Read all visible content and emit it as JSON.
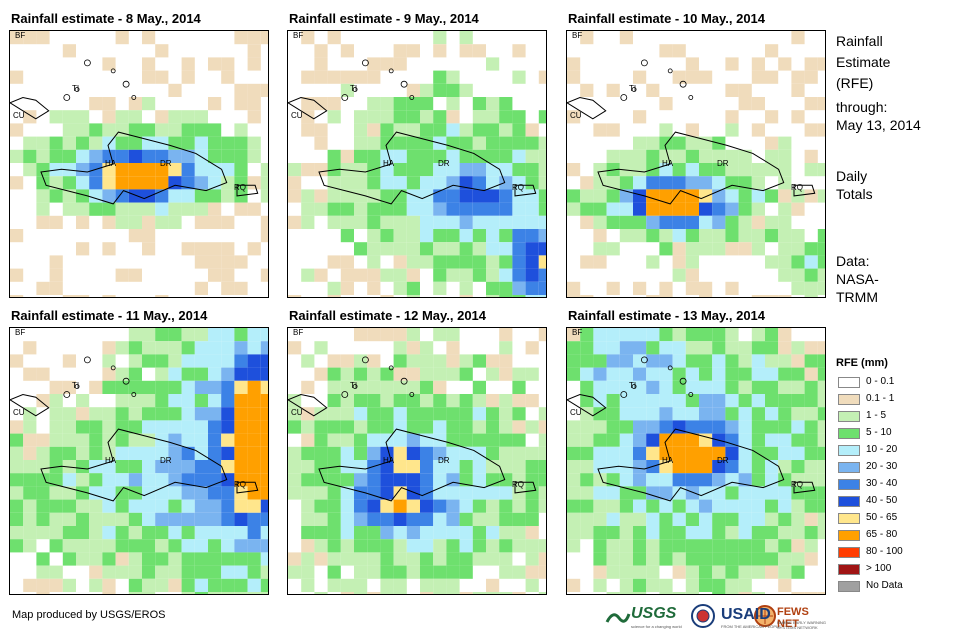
{
  "panels": [
    {
      "title": "Rainfall estimate - 8 May., 2014"
    },
    {
      "title": "Rainfall estimate - 9 May., 2014"
    },
    {
      "title": "Rainfall estimate - 10 May., 2014"
    },
    {
      "title": "Rainfall estimate - 11 May., 2014"
    },
    {
      "title": "Rainfall estimate - 12 May., 2014"
    },
    {
      "title": "Rainfall estimate - 13 May., 2014"
    }
  ],
  "labels": {
    "bf": "BF",
    "ti": "TI",
    "cu": "CU",
    "ha": "HA",
    "dr": "DR",
    "rq": "RQ"
  },
  "side": {
    "title_1": "Rainfall",
    "title_2": "Estimate",
    "title_3": "(RFE)",
    "through": "through:",
    "date": "May 13, 2014",
    "daily": "Daily",
    "totals": "Totals",
    "data": "Data:",
    "source_1": "NASA-",
    "source_2": "TRMM"
  },
  "legend": {
    "title": "RFE (mm)",
    "items": [
      {
        "label": "0 - 0.1",
        "color": "#ffffff"
      },
      {
        "label": "0.1 - 1",
        "color": "#f0dcbc"
      },
      {
        "label": "1 - 5",
        "color": "#c4f0b4"
      },
      {
        "label": "5 - 10",
        "color": "#6ee06e"
      },
      {
        "label": "10 - 20",
        "color": "#b4eefa"
      },
      {
        "label": "20 - 30",
        "color": "#7ab4f0"
      },
      {
        "label": "30 - 40",
        "color": "#3c82e6"
      },
      {
        "label": "40 - 50",
        "color": "#1e50dc"
      },
      {
        "label": "50 - 65",
        "color": "#ffe68c"
      },
      {
        "label": "65 - 80",
        "color": "#ffa000"
      },
      {
        "label": "80 - 100",
        "color": "#ff3c00"
      },
      {
        "label": "> 100",
        "color": "#a01414"
      },
      {
        "label": "No Data",
        "color": "#a0a0a0"
      }
    ]
  },
  "credit": "Map produced by USGS/EROS",
  "logos": {
    "usgs": "USGS",
    "usaid": "USAID",
    "fews": "FEWS NET",
    "usgs_tag": "science for a changing world",
    "usaid_tag": "FROM THE AMERICAN PEOPLE",
    "fews_tag": "FAMINE EARLY WARNING SYSTEMS NETWORK"
  }
}
